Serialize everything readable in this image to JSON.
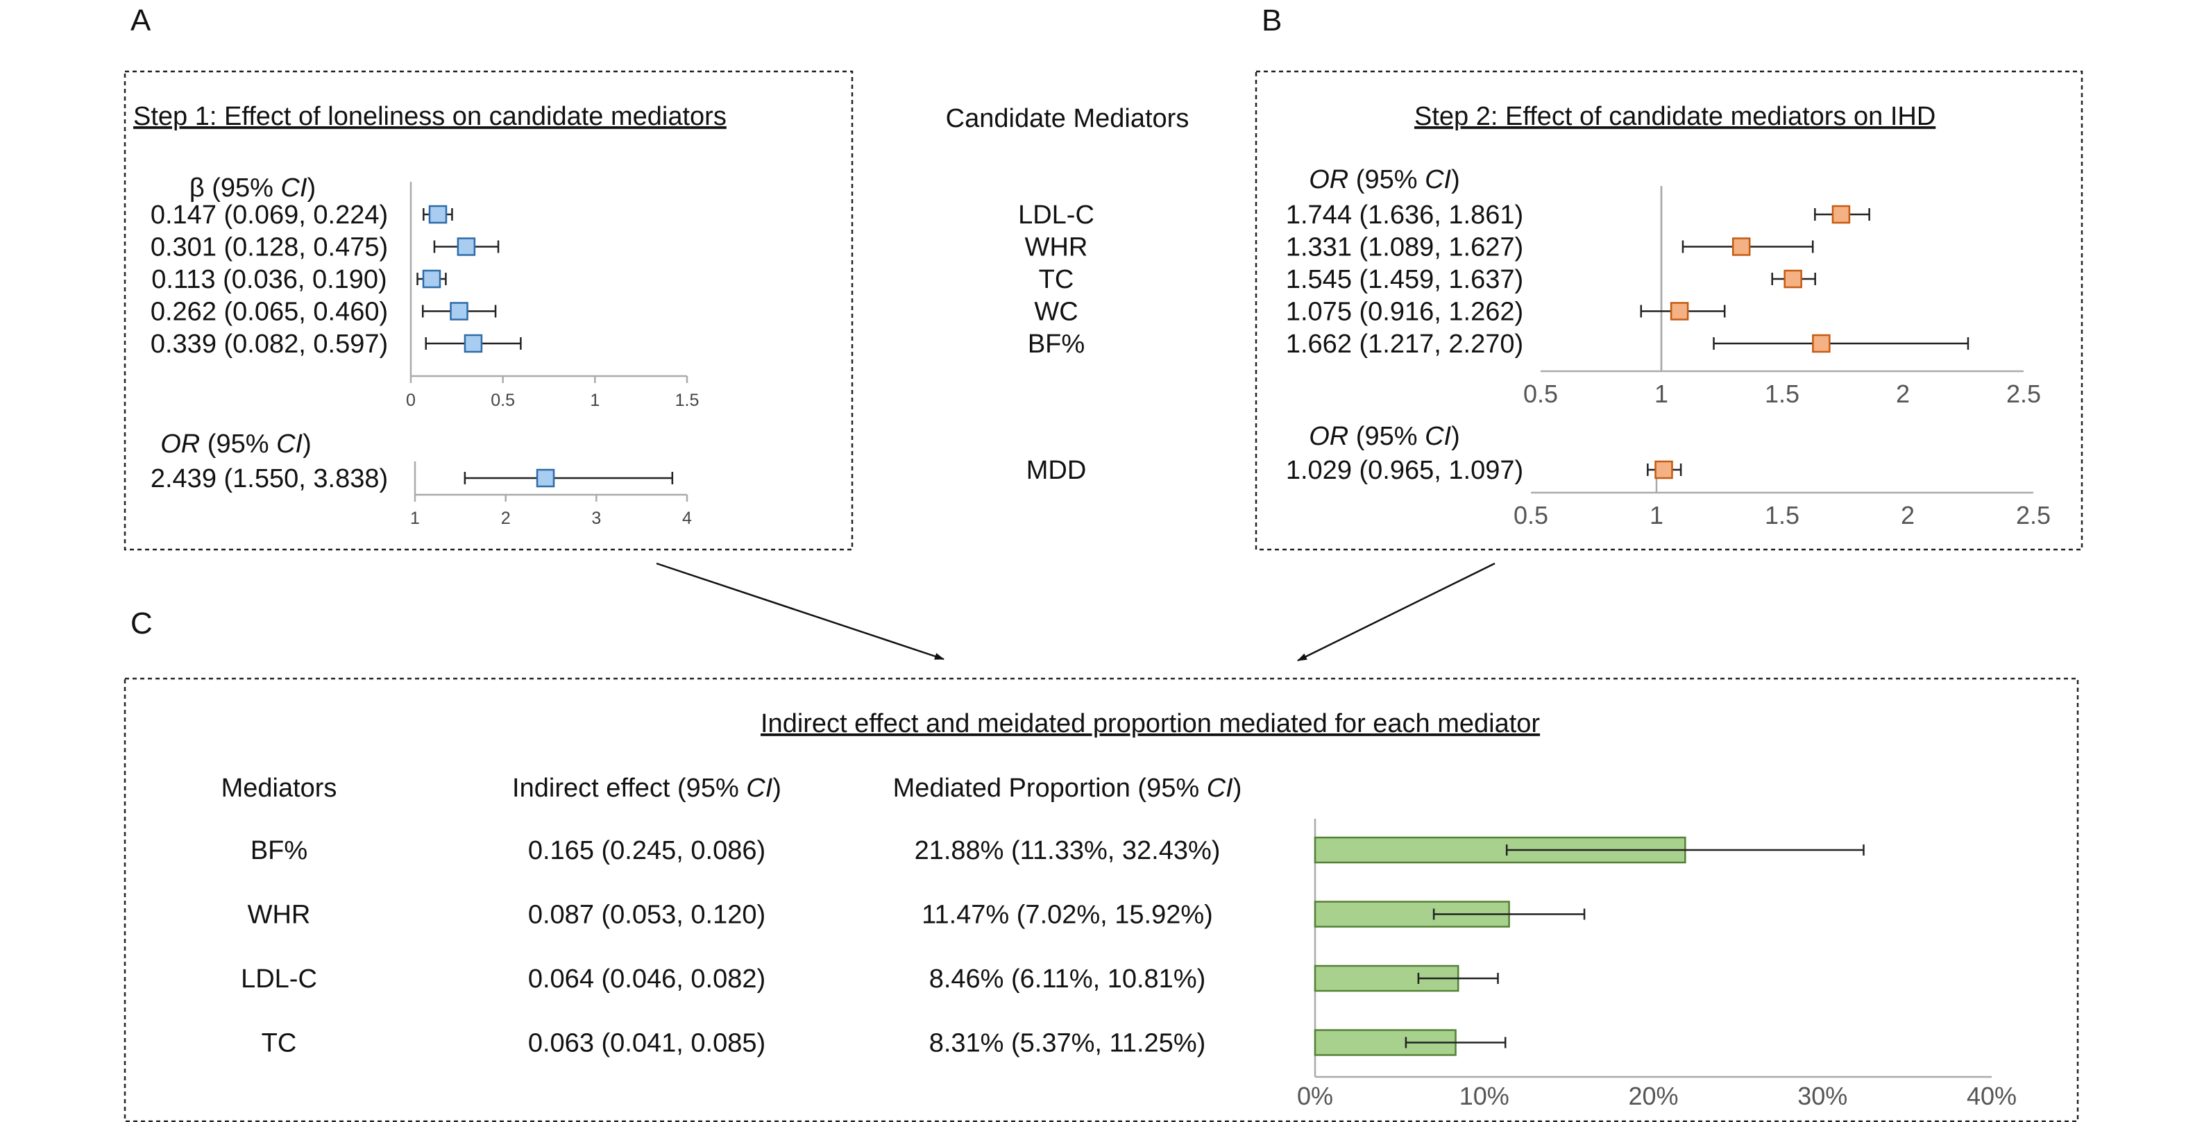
{
  "panels": {
    "a": {
      "letter": "A",
      "title": "Step 1: Effect of loneliness on candidate mediators",
      "beta_header": "β (95% CI)",
      "or_header": "OR (95% CI)"
    },
    "b": {
      "letter": "B",
      "title": "Step 2: Effect of candidate mediators on IHD",
      "or_header_1": "OR (95% CI)",
      "or_header_2": "OR (95% CI)"
    },
    "c": {
      "letter": "C",
      "title": "Indirect effect and meidated proportion mediated for each mediator",
      "col_mediators": "Mediators",
      "col_indirect": "Indirect effect (95% CI)",
      "col_proportion": "Mediated Proportion (95% CI)"
    }
  },
  "middle_header": "Candidate Mediators",
  "chart_data": [
    {
      "type": "forest",
      "panel": "A-top",
      "measure": "β (95% CI)",
      "categories": [
        "LDL-C",
        "WHR",
        "TC",
        "WC",
        "BF%"
      ],
      "labels": [
        "0.147 (0.069, 0.224)",
        "0.301 (0.128, 0.475)",
        "0.113 (0.036, 0.190)",
        "0.262 (0.065, 0.460)",
        "0.339 (0.082, 0.597)"
      ],
      "estimate": [
        0.147,
        0.301,
        0.113,
        0.262,
        0.339
      ],
      "lower": [
        0.069,
        0.128,
        0.036,
        0.065,
        0.082
      ],
      "upper": [
        0.224,
        0.475,
        0.19,
        0.46,
        0.597
      ],
      "xticks": [
        0,
        0.5,
        1,
        1.5
      ],
      "xlim": [
        0,
        1.5
      ],
      "color": "#a9cdf0"
    },
    {
      "type": "forest",
      "panel": "A-bottom",
      "measure": "OR (95% CI)",
      "categories": [
        "MDD"
      ],
      "labels": [
        "2.439 (1.550, 3.838)"
      ],
      "estimate": [
        2.439
      ],
      "lower": [
        1.55
      ],
      "upper": [
        3.838
      ],
      "xticks": [
        1,
        2,
        3,
        4
      ],
      "xlim": [
        1,
        4
      ],
      "color": "#a9cdf0"
    },
    {
      "type": "forest",
      "panel": "B-top",
      "measure": "OR (95% CI)",
      "categories": [
        "LDL-C",
        "WHR",
        "TC",
        "WC",
        "BF%"
      ],
      "labels": [
        "1.744 (1.636, 1.861)",
        "1.331 (1.089, 1.627)",
        "1.545 (1.459, 1.637)",
        "1.075 (0.916, 1.262)",
        "1.662 (1.217, 2.270)"
      ],
      "estimate": [
        1.744,
        1.331,
        1.545,
        1.075,
        1.662
      ],
      "lower": [
        1.636,
        1.089,
        1.459,
        0.916,
        1.217
      ],
      "upper": [
        1.861,
        1.627,
        1.637,
        1.262,
        2.27
      ],
      "xticks": [
        0.5,
        1,
        1.5,
        2,
        2.5
      ],
      "xlim": [
        0.5,
        2.5
      ],
      "refline": 1,
      "color": "#f4b183"
    },
    {
      "type": "forest",
      "panel": "B-bottom",
      "measure": "OR (95% CI)",
      "categories": [
        "MDD"
      ],
      "labels": [
        "1.029 (0.965, 1.097)"
      ],
      "estimate": [
        1.029
      ],
      "lower": [
        0.965
      ],
      "upper": [
        1.097
      ],
      "xticks": [
        0.5,
        1,
        1.5,
        2,
        2.5
      ],
      "xlim": [
        0.5,
        2.5
      ],
      "refline": 1,
      "color": "#f4b183"
    },
    {
      "type": "bar",
      "panel": "C",
      "orientation": "horizontal",
      "categories": [
        "BF%",
        "WHR",
        "LDL-C",
        "TC"
      ],
      "indirect_effect": [
        "0.165 (0.245, 0.086)",
        "0.087 (0.053, 0.120)",
        "0.064 (0.046, 0.082)",
        "0.063 (0.041, 0.085)"
      ],
      "proportion_labels": [
        "21.88% (11.33%, 32.43%)",
        "11.47% (7.02%, 15.92%)",
        "8.46% (6.11%, 10.81%)",
        "8.31% (5.37%, 11.25%)"
      ],
      "values": [
        21.88,
        11.47,
        8.46,
        8.31
      ],
      "lower": [
        11.33,
        7.02,
        6.11,
        5.37
      ],
      "upper": [
        32.43,
        15.92,
        10.81,
        11.25
      ],
      "xticks": [
        "0%",
        "10%",
        "20%",
        "30%",
        "40%"
      ],
      "xlim": [
        0,
        40
      ],
      "color": "#a9d18e"
    }
  ]
}
